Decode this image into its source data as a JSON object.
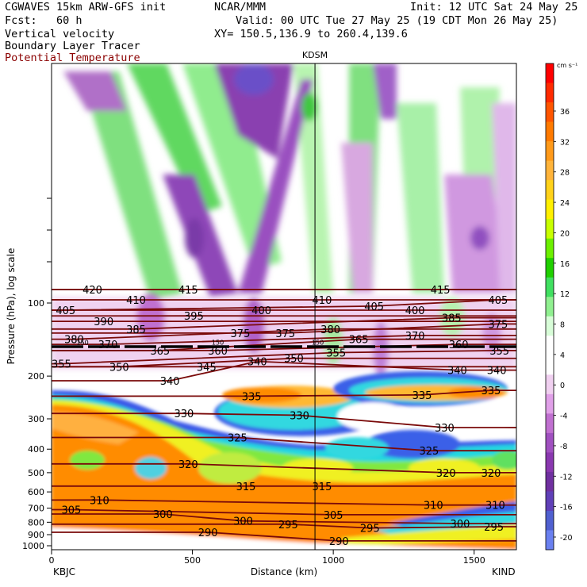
{
  "header": {
    "model": "CGWAVES 15km ARW-GFS init",
    "forecast": "Fcst:   60 h",
    "org": "NCAR/MMM",
    "init": "Init: 12 UTC Sat 24 May 25",
    "valid": "Valid: 00 UTC Tue 27 May 25 (19 CDT Mon 26 May 25)",
    "xy": "XY= 150.5,136.9 to 260.4,139.6",
    "field1": "Vertical velocity",
    "field2": "Boundary Layer Tracer",
    "field3": "Potential Temperature",
    "field3_color": "#8b0000"
  },
  "chart_data": {
    "type": "heatmap",
    "title": "KDSM",
    "xlabel": "Distance (km)",
    "ylabel": "Pressure (hPa), log scale",
    "x_ticks": [
      "0",
      "500",
      "1000",
      "1500"
    ],
    "x_end_labels": [
      "KBJC",
      "KIND"
    ],
    "xlim": [
      0,
      1650
    ],
    "y_ticks": [
      "100",
      "200",
      "300",
      "400",
      "500",
      "600",
      "700",
      "800",
      "900",
      "1000"
    ],
    "y_scale": "log",
    "marker_x_km": 935,
    "colorbar": {
      "unit": "cm s⁻¹",
      "labels": [
        "36",
        "32",
        "28",
        "24",
        "20",
        "16",
        "12",
        "8",
        "4",
        "0",
        "-4",
        "-8",
        "-12",
        "-16",
        "-20"
      ],
      "colors": [
        "#ff0000",
        "#ff2a00",
        "#ff5500",
        "#ff7a00",
        "#ff9a1a",
        "#ffb43a",
        "#ffd21a",
        "#fff000",
        "#c8ff00",
        "#6cf000",
        "#20d000",
        "#40e060",
        "#90f090",
        "#d8fdd8",
        "#ffffff",
        "#ffffff",
        "#f0d0f0",
        "#e0a0e8",
        "#c070d0",
        "#a050c0",
        "#8a38b0",
        "#7030a0",
        "#6040b8",
        "#5060d0",
        "#6a80f0"
      ]
    },
    "theta_labels": [
      {
        "v": "420",
        "x": 145,
        "p": 88
      },
      {
        "v": "410",
        "x": 300,
        "p": 97
      },
      {
        "v": "415",
        "x": 485,
        "p": 88
      },
      {
        "v": "410",
        "x": 960,
        "p": 97
      },
      {
        "v": "405",
        "x": 1145,
        "p": 103
      },
      {
        "v": "415",
        "x": 1380,
        "p": 88
      },
      {
        "v": "405",
        "x": 1585,
        "p": 97
      },
      {
        "v": "405",
        "x": 50,
        "p": 107
      },
      {
        "v": "390",
        "x": 185,
        "p": 119
      },
      {
        "v": "385",
        "x": 300,
        "p": 128
      },
      {
        "v": "395",
        "x": 505,
        "p": 113
      },
      {
        "v": "400",
        "x": 745,
        "p": 107
      },
      {
        "v": "400",
        "x": 1290,
        "p": 107
      },
      {
        "v": "385",
        "x": 1420,
        "p": 115
      },
      {
        "v": "375",
        "x": 1585,
        "p": 122
      },
      {
        "v": "375",
        "x": 670,
        "p": 133
      },
      {
        "v": "375",
        "x": 830,
        "p": 133
      },
      {
        "v": "380",
        "x": 990,
        "p": 128
      },
      {
        "v": "365",
        "x": 1090,
        "p": 141
      },
      {
        "v": "370",
        "x": 1290,
        "p": 136
      },
      {
        "v": "380",
        "x": 80,
        "p": 141
      },
      {
        "v": "370",
        "x": 200,
        "p": 148
      },
      {
        "v": "365",
        "x": 385,
        "p": 157
      },
      {
        "v": "360",
        "x": 590,
        "p": 157
      },
      {
        "v": "360",
        "x": 1445,
        "p": 148
      },
      {
        "v": "355",
        "x": 1590,
        "p": 157
      },
      {
        "v": "355",
        "x": 35,
        "p": 178
      },
      {
        "v": "350",
        "x": 240,
        "p": 183
      },
      {
        "v": "345",
        "x": 550,
        "p": 183
      },
      {
        "v": "340",
        "x": 730,
        "p": 174
      },
      {
        "v": "350",
        "x": 860,
        "p": 169
      },
      {
        "v": "355",
        "x": 1010,
        "p": 160
      },
      {
        "v": "340",
        "x": 420,
        "p": 209
      },
      {
        "v": "340",
        "x": 1440,
        "p": 189
      },
      {
        "v": "340",
        "x": 1580,
        "p": 189
      },
      {
        "v": "335",
        "x": 710,
        "p": 242
      },
      {
        "v": "335",
        "x": 1315,
        "p": 239
      },
      {
        "v": "335",
        "x": 1560,
        "p": 229
      },
      {
        "v": "330",
        "x": 470,
        "p": 285
      },
      {
        "v": "330",
        "x": 880,
        "p": 290
      },
      {
        "v": "330",
        "x": 1395,
        "p": 326
      },
      {
        "v": "325",
        "x": 660,
        "p": 358
      },
      {
        "v": "325",
        "x": 1340,
        "p": 406
      },
      {
        "v": "320",
        "x": 485,
        "p": 460
      },
      {
        "v": "320",
        "x": 1400,
        "p": 500
      },
      {
        "v": "320",
        "x": 1560,
        "p": 500
      },
      {
        "v": "315",
        "x": 690,
        "p": 568
      },
      {
        "v": "315",
        "x": 960,
        "p": 568
      },
      {
        "v": "310",
        "x": 170,
        "p": 648
      },
      {
        "v": "310",
        "x": 1355,
        "p": 680
      },
      {
        "v": "310",
        "x": 1575,
        "p": 680
      },
      {
        "v": "305",
        "x": 70,
        "p": 710
      },
      {
        "v": "300",
        "x": 395,
        "p": 740
      },
      {
        "v": "300",
        "x": 680,
        "p": 790
      },
      {
        "v": "305",
        "x": 1000,
        "p": 745
      },
      {
        "v": "295",
        "x": 840,
        "p": 815
      },
      {
        "v": "295",
        "x": 1130,
        "p": 845
      },
      {
        "v": "300",
        "x": 1450,
        "p": 810
      },
      {
        "v": "295",
        "x": 1570,
        "p": 835
      },
      {
        "v": "290",
        "x": 555,
        "p": 880
      },
      {
        "v": "290",
        "x": 1020,
        "p": 955
      }
    ],
    "tracer_labels": [
      {
        "v": "150",
        "x": 110,
        "p": 145
      },
      {
        "v": "150",
        "x": 590,
        "p": 145
      },
      {
        "v": "150",
        "x": 945,
        "p": 145
      }
    ]
  }
}
